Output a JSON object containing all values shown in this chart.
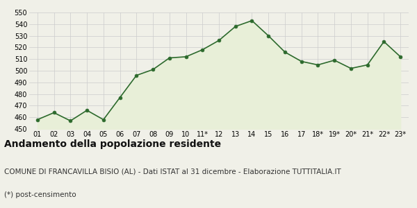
{
  "labels": [
    "01",
    "02",
    "03",
    "04",
    "05",
    "06",
    "07",
    "08",
    "09",
    "10",
    "11*",
    "12",
    "13",
    "14",
    "15",
    "16",
    "17",
    "18*",
    "19*",
    "20*",
    "21*",
    "22*",
    "23*"
  ],
  "values": [
    458,
    464,
    457,
    466,
    458,
    477,
    496,
    501,
    511,
    512,
    518,
    526,
    538,
    543,
    530,
    516,
    508,
    505,
    509,
    502,
    505,
    525,
    512
  ],
  "line_color": "#2d6a2d",
  "fill_color": "#e8efd8",
  "marker_color": "#2d6a2d",
  "bg_color": "#f0f0e8",
  "grid_color": "#cccccc",
  "ylim": [
    450,
    550
  ],
  "yticks": [
    450,
    460,
    470,
    480,
    490,
    500,
    510,
    520,
    530,
    540,
    550
  ],
  "title": "Andamento della popolazione residente",
  "subtitle": "COMUNE DI FRANCAVILLA BISIO (AL) - Dati ISTAT al 31 dicembre - Elaborazione TUTTITALIA.IT",
  "footnote": "(*) post-censimento",
  "title_fontsize": 10,
  "subtitle_fontsize": 7.5,
  "footnote_fontsize": 7.5
}
